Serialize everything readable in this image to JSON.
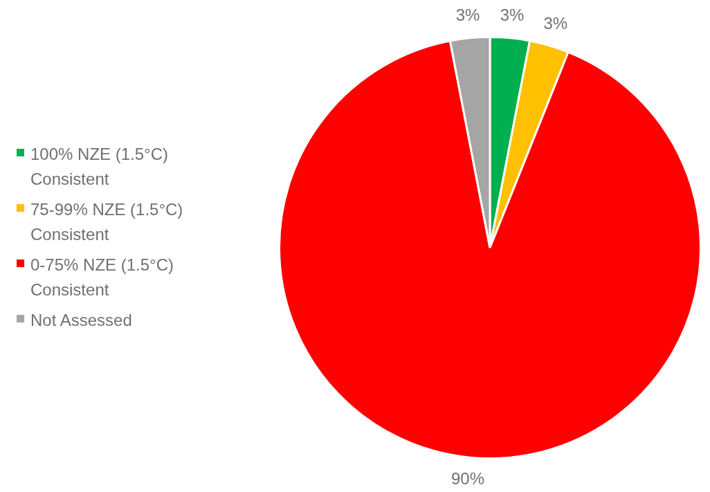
{
  "chart_data": {
    "type": "pie",
    "categories": [
      "100% NZE (1.5°C) Consistent",
      "75-99% NZE (1.5°C) Consistent",
      "0-75% NZE (1.5°C) Consistent",
      "Not Assessed"
    ],
    "values": [
      3,
      3,
      90,
      3
    ],
    "value_labels": [
      "3%",
      "3%",
      "90%",
      "3%"
    ],
    "colors": [
      "#00b050",
      "#ffc000",
      "#ff0000",
      "#a5a5a5"
    ],
    "legend": "left"
  }
}
